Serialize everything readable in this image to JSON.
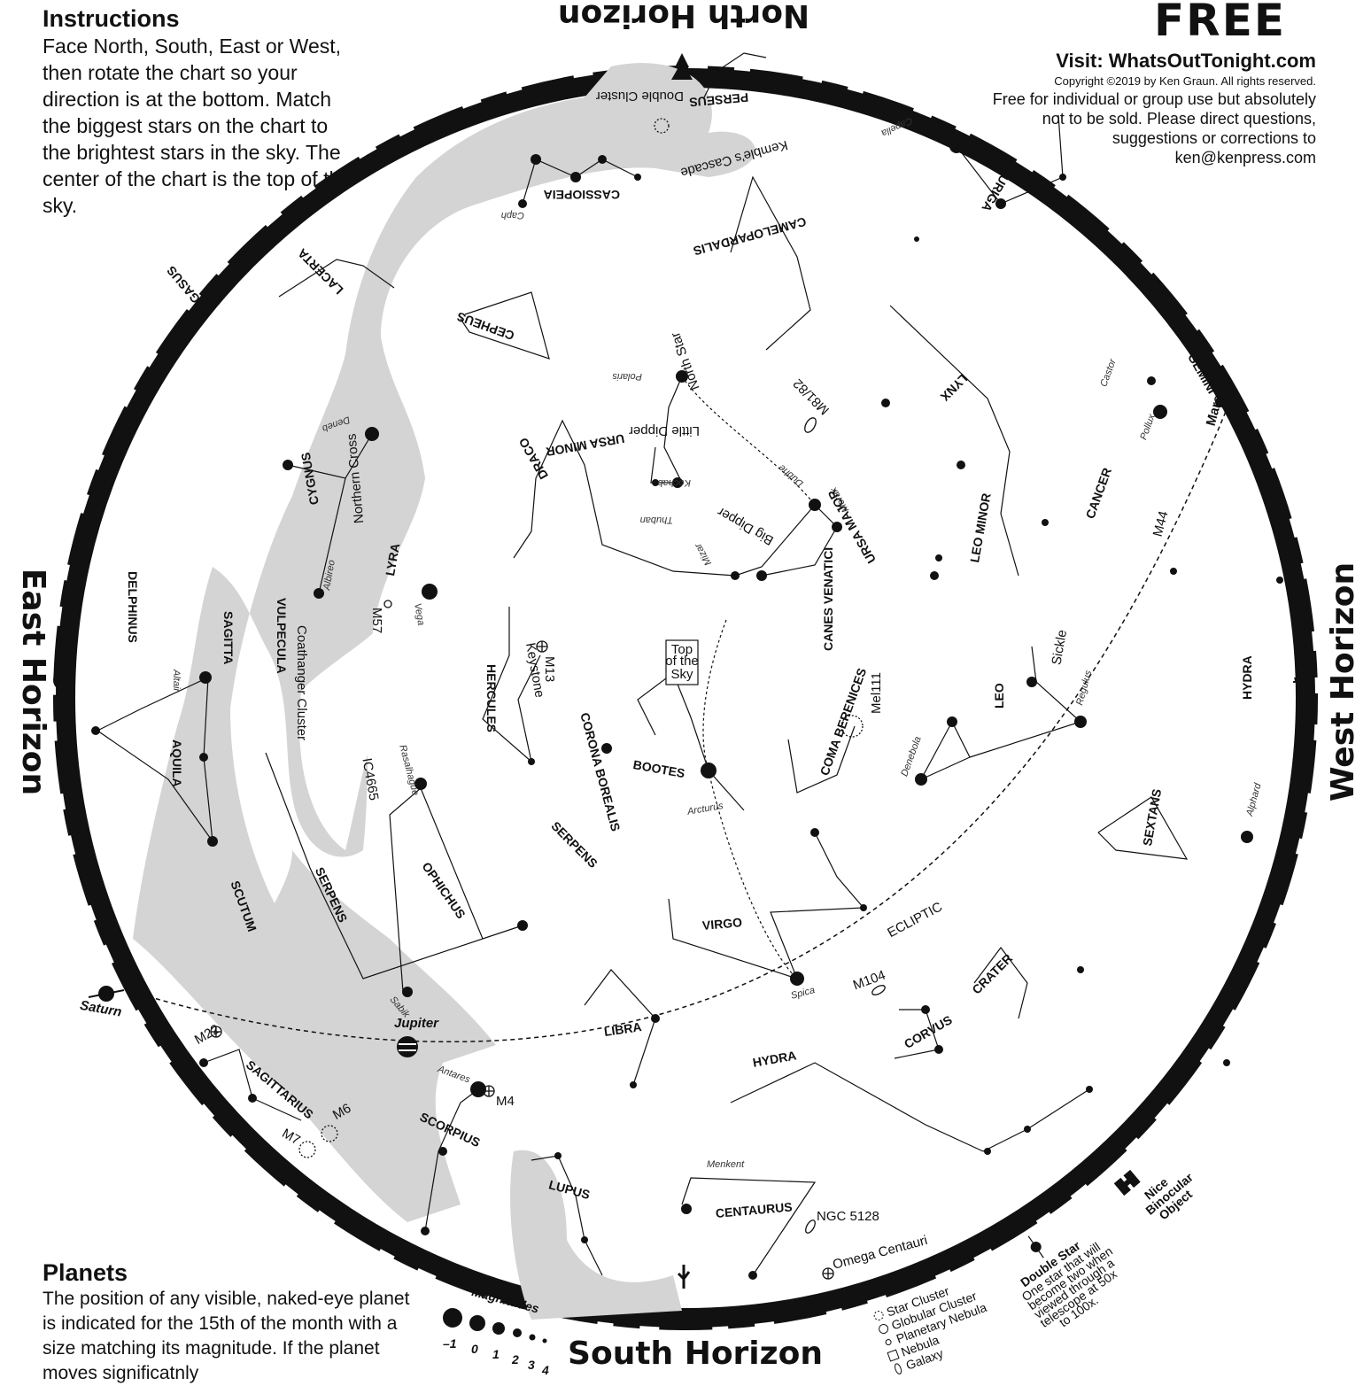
{
  "instructions": {
    "title": "Instructions",
    "body": "Face North, South, East or West, then rotate the chart so your direction is at the bottom. Match the biggest stars on the chart to the brightest stars in the sky. The center of the chart is the top of the sky."
  },
  "planets_note": {
    "title": "Planets",
    "body": "The position of any visible, naked-eye planet is indicated for the 15th of the month with a size matching its magnitude. If the planet moves significatnly"
  },
  "header": {
    "free": "FREE",
    "visit": "Visit:  WhatsOutTonight.com",
    "copyright": "Copyright ©2019 by Ken Graun. All rights reserved.",
    "note": "Free for individual or group use but absolutely not to be sold. Please direct questions, suggestions or corrections to ken@kenpress.com"
  },
  "horizons": {
    "north": "North Horizon",
    "south": "South Horizon",
    "east": "East Horizon",
    "west": "West Horizon"
  },
  "constellations": [
    "CASSIOPEIA",
    "PERSEUS",
    "AURIGA",
    "CAMELOPARDALIS",
    "LACERTA",
    "PEGASUS",
    "CEPHEUS",
    "GEMINI",
    "LYNX",
    "URSA MINOR",
    "DRACO",
    "CYGNUS",
    "DELPHINUS",
    "VULPECULA",
    "SAGITTA",
    "LYRA",
    "CANCER",
    "LEO MINOR",
    "URSA MAJOR",
    "HERCULES",
    "CORONA BOREALIS",
    "CANES VENATICI",
    "AQUILA",
    "LEO",
    "HYDRA",
    "BOOTES",
    "COMA BERENICES",
    "SCUTUM",
    "SERPENS",
    "OPHICHUS",
    "SEXTANS",
    "VIRGO",
    "CRATER",
    "LIBRA",
    "CORVUS",
    "SAGITTARIUS",
    "SCORPIUS",
    "LUPUS",
    "CENTAURUS"
  ],
  "star_names": [
    "Caph",
    "Capella",
    "Polaris",
    "Castor",
    "Pollux",
    "Deneb",
    "Kochab",
    "Dubhe",
    "Merak",
    "Thuban",
    "Mizar",
    "Albireo",
    "Vega",
    "Altair",
    "Regulus",
    "Rasalhague",
    "Denebola",
    "Arcturus",
    "Alphard",
    "Spica",
    "Sabik",
    "Antares",
    "Menkent"
  ],
  "objects": [
    "Double Cluster",
    "Kemble's Cascade",
    "North Star",
    "Little Dipper",
    "M81/82",
    "Northern Cross",
    "Big Dipper",
    "M44",
    "Mars",
    "M57",
    "Coathanger Cluster",
    "M13",
    "Keystone",
    "Mel111",
    "Sickle",
    "IC4665",
    "ECLIPTIC",
    "M104",
    "Saturn",
    "Jupiter",
    "M22",
    "M4",
    "M6",
    "M7",
    "NGC 5128",
    "Omega Centauri"
  ],
  "top_of_sky": [
    "Top",
    "of the",
    "Sky"
  ],
  "legend": {
    "magnitudes_title": "Magnitudes",
    "magnitudes": [
      "–1",
      "0",
      "1",
      "2",
      "3",
      "4"
    ],
    "object_types": [
      "Star Cluster",
      "Globular Cluster",
      "Planetary Nebula",
      "Nebula",
      "Galaxy"
    ],
    "double_star_title": "Double Star",
    "double_star_text": [
      "One star that will",
      "become two when",
      "viewed through a",
      "telescope at 50x",
      "to 100x."
    ],
    "binocular": [
      "Nice",
      "Binocular",
      "Object"
    ]
  },
  "colors": {
    "milky_way": "#d4d4d4",
    "ink": "#111111",
    "paper": "#ffffff"
  }
}
